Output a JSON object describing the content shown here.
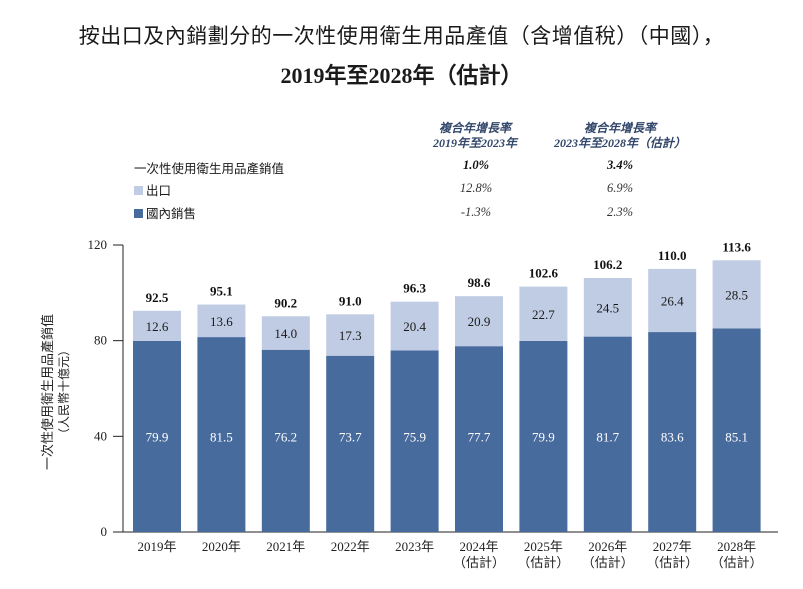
{
  "title_line1": "按出口及內銷劃分的一次性使用衛生用品產值（含增值稅）（中國），",
  "title_line2": "2019年至2028年（估計）",
  "cagr_table": {
    "headers": [
      {
        "line1": "複合年增長率",
        "line2": "2019年至2023年"
      },
      {
        "line1": "複合年增長率",
        "line2": "2023年至2028年（估計）"
      }
    ],
    "rows": [
      {
        "label": "一次性使用衛生用品產銷值",
        "values": [
          "1.0%",
          "3.4%"
        ],
        "swatch": null
      },
      {
        "label": "出口",
        "values": [
          "12.8%",
          "6.9%"
        ],
        "swatch": "#c0cce3"
      },
      {
        "label": "國內銷售",
        "values": [
          "-1.3%",
          "2.3%"
        ],
        "swatch": "#486b9e"
      }
    ]
  },
  "chart_data": {
    "type": "bar",
    "stacked": true,
    "title": "按出口及內銷劃分的一次性使用衛生用品產值（含增值稅）（中國），2019年至2028年（估計）",
    "xlabel": "",
    "ylabel": "一次性使用衛生用品產銷值（人民幣十億元）",
    "ylabel_line1": "一次性使用衛生用品產銷值",
    "ylabel_line2": "（人民幣十億元）",
    "ylim": [
      0,
      120
    ],
    "yticks": [
      0,
      40,
      80,
      120
    ],
    "grid": false,
    "legend": "top-left",
    "categories": [
      [
        "2019年"
      ],
      [
        "2020年"
      ],
      [
        "2021年"
      ],
      [
        "2022年"
      ],
      [
        "2023年"
      ],
      [
        "2024年",
        "（估計）"
      ],
      [
        "2025年",
        "（估計）"
      ],
      [
        "2026年",
        "（估計）"
      ],
      [
        "2027年",
        "（估計）"
      ],
      [
        "2028年",
        "（估計）"
      ]
    ],
    "series": [
      {
        "name": "國內銷售",
        "color": "#486b9e",
        "label_color": "#ffffff",
        "values": [
          79.9,
          81.5,
          76.2,
          73.7,
          75.9,
          77.7,
          79.9,
          81.7,
          83.6,
          85.1
        ]
      },
      {
        "name": "出口",
        "color": "#c0cce3",
        "label_color": "#1a1a1a",
        "values": [
          12.6,
          13.6,
          14.0,
          17.3,
          20.4,
          20.9,
          22.7,
          24.5,
          26.4,
          28.5
        ]
      }
    ],
    "totals": [
      92.5,
      95.1,
      90.2,
      91.0,
      96.3,
      98.6,
      102.6,
      106.2,
      110.0,
      113.6
    ]
  }
}
